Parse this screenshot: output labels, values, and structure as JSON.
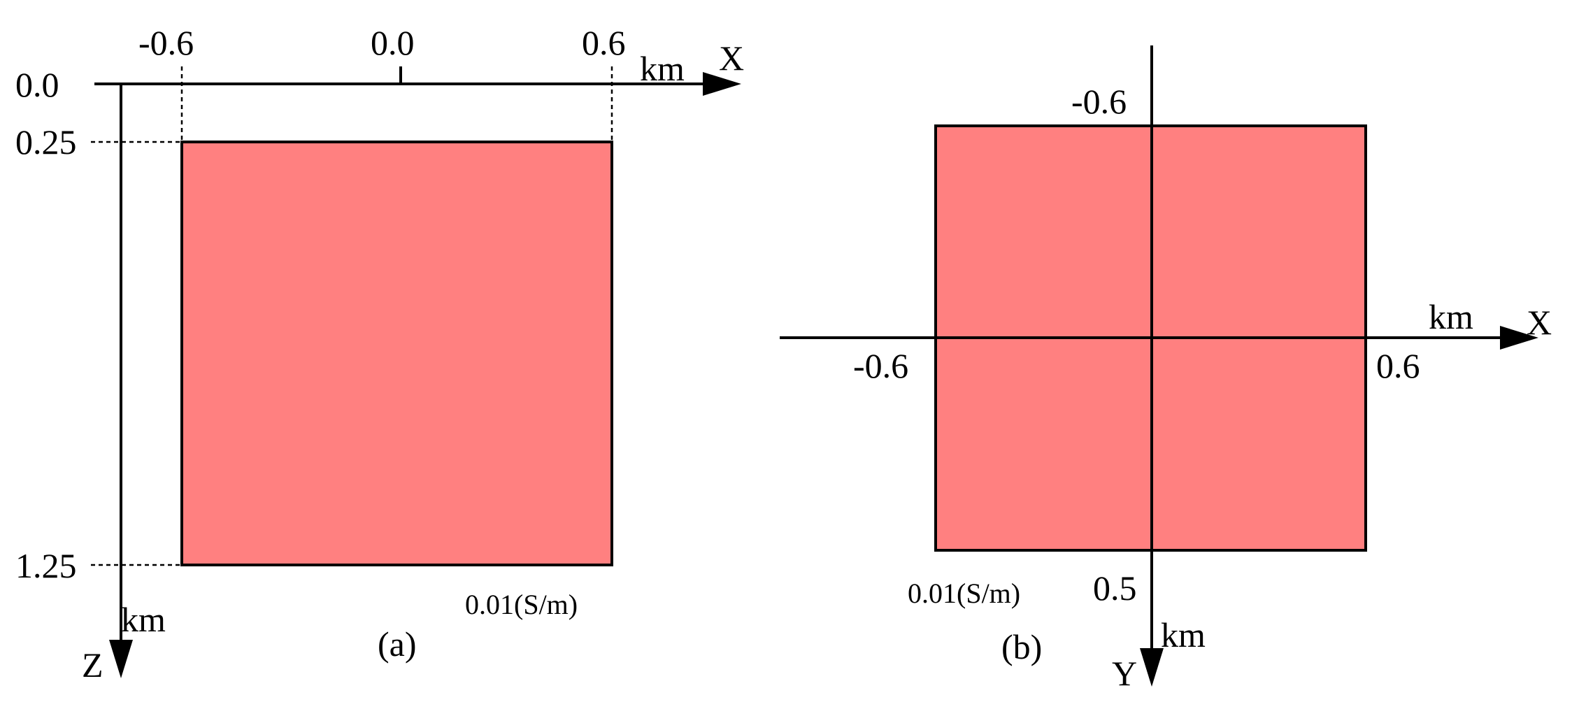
{
  "colors": {
    "block_fill": "#ff8080",
    "stroke": "#000000",
    "background": "#ffffff"
  },
  "panel_a": {
    "caption": "(a)",
    "x_axis": {
      "name": "X",
      "unit": "km",
      "ticks": [
        "-0.6",
        "0.0",
        "0.6"
      ]
    },
    "z_axis": {
      "name": "Z",
      "unit": "km",
      "ticks": [
        "0.0",
        "0.25",
        "1.25"
      ]
    },
    "block_label": "0.01(S/m)"
  },
  "panel_b": {
    "caption": "(b)",
    "x_axis": {
      "name": "X",
      "unit": "km",
      "ticks": [
        "-0.6",
        "0.6"
      ]
    },
    "y_axis": {
      "name": "Y",
      "unit": "km",
      "ticks": [
        "-0.6",
        "0.5"
      ]
    },
    "block_label": "0.01(S/m)"
  }
}
